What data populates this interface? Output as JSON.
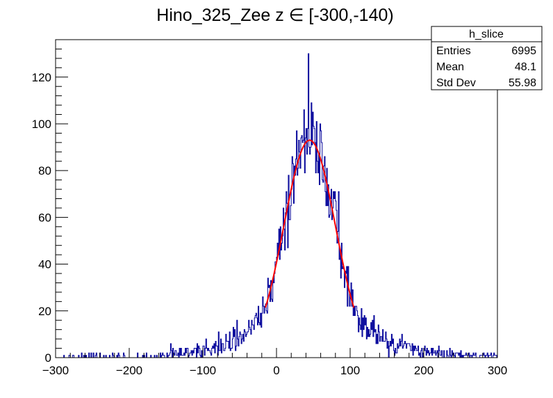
{
  "chart_data": {
    "type": "histogram",
    "title": "Hino_325_Zee z  ∈ [-300,-140)",
    "xlabel": "",
    "ylabel": "",
    "xlim": [
      -300,
      300
    ],
    "ylim": [
      0,
      136
    ],
    "x_ticks": [
      -300,
      -200,
      -100,
      0,
      100,
      200,
      300
    ],
    "x_tick_labels": [
      "−300",
      "−200",
      "−100",
      "0",
      "100",
      "200",
      "300"
    ],
    "y_ticks": [
      0,
      20,
      40,
      60,
      80,
      100,
      120
    ],
    "y_tick_labels": [
      "0",
      "20",
      "40",
      "60",
      "80",
      "100",
      "120"
    ],
    "grid": false,
    "series": [
      {
        "name": "h_slice",
        "kind": "histogram",
        "color": "#000099",
        "bin_range": [
          -300,
          300
        ],
        "num_bins": 600,
        "peak_bin_center": 43.5,
        "peak_count": 130
      },
      {
        "kind": "fit",
        "shape": "gaussian",
        "color": "#ff0000",
        "amplitude": 93,
        "mean": 45,
        "sigma": 35,
        "x_range": [
          -15,
          105
        ]
      }
    ],
    "stats_box": {
      "title": "h_slice",
      "position": "top-right",
      "rows": [
        {
          "label": "Entries",
          "value": "6995"
        },
        {
          "label": "Mean",
          "value": "48.1"
        },
        {
          "label": "Std Dev",
          "value": "55.98"
        }
      ]
    }
  }
}
